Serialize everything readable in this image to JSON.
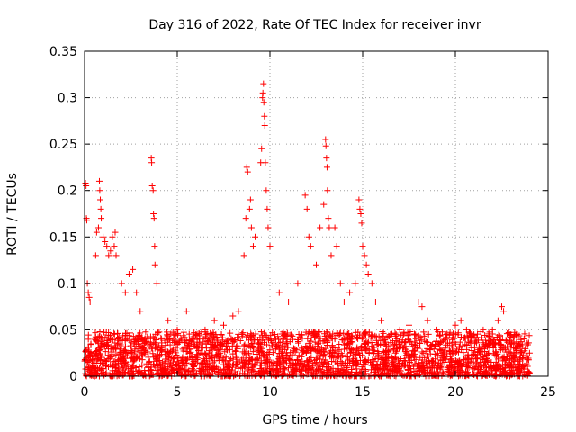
{
  "chart_data": {
    "type": "scatter",
    "title": "Day 316 of 2022, Rate Of TEC Index for receiver invr",
    "xlabel": "GPS time / hours",
    "ylabel": "ROTI / TECUs",
    "xlim": [
      0,
      25
    ],
    "ylim": [
      0,
      0.35
    ],
    "xticks": [
      0,
      5,
      10,
      15,
      20,
      25
    ],
    "xtick_labels": [
      "0",
      "5",
      "10",
      "15",
      "20",
      "25"
    ],
    "yticks": [
      0,
      0.05,
      0.1,
      0.15,
      0.2,
      0.25,
      0.3,
      0.35
    ],
    "ytick_labels": [
      "0",
      "0.05",
      "0.1",
      "0.15",
      "0.2",
      "0.25",
      "0.3",
      "0.35"
    ],
    "grid": true,
    "marker": "+",
    "series": [
      {
        "name": "ROTI",
        "color": "#ff0000",
        "points": [
          [
            0.05,
            0.208
          ],
          [
            0.08,
            0.205
          ],
          [
            0.1,
            0.17
          ],
          [
            0.12,
            0.168
          ],
          [
            0.15,
            0.1
          ],
          [
            0.2,
            0.09
          ],
          [
            0.25,
            0.085
          ],
          [
            0.3,
            0.08
          ],
          [
            0.6,
            0.13
          ],
          [
            0.65,
            0.155
          ],
          [
            0.75,
            0.16
          ],
          [
            0.8,
            0.21
          ],
          [
            0.82,
            0.2
          ],
          [
            0.85,
            0.19
          ],
          [
            0.88,
            0.18
          ],
          [
            0.9,
            0.17
          ],
          [
            1.0,
            0.15
          ],
          [
            1.1,
            0.145
          ],
          [
            1.2,
            0.14
          ],
          [
            1.3,
            0.13
          ],
          [
            1.4,
            0.135
          ],
          [
            1.5,
            0.15
          ],
          [
            1.6,
            0.14
          ],
          [
            1.65,
            0.155
          ],
          [
            1.7,
            0.13
          ],
          [
            2.0,
            0.1
          ],
          [
            2.2,
            0.09
          ],
          [
            2.4,
            0.11
          ],
          [
            2.6,
            0.115
          ],
          [
            2.8,
            0.09
          ],
          [
            3.0,
            0.07
          ],
          [
            3.6,
            0.235
          ],
          [
            3.62,
            0.23
          ],
          [
            3.65,
            0.205
          ],
          [
            3.7,
            0.2
          ],
          [
            3.72,
            0.175
          ],
          [
            3.75,
            0.17
          ],
          [
            3.78,
            0.14
          ],
          [
            3.8,
            0.12
          ],
          [
            3.9,
            0.1
          ],
          [
            4.5,
            0.06
          ],
          [
            5.0,
            0.05
          ],
          [
            5.5,
            0.07
          ],
          [
            6.0,
            0.045
          ],
          [
            6.5,
            0.05
          ],
          [
            7.0,
            0.06
          ],
          [
            7.5,
            0.055
          ],
          [
            8.0,
            0.065
          ],
          [
            8.3,
            0.07
          ],
          [
            8.6,
            0.13
          ],
          [
            8.7,
            0.17
          ],
          [
            8.75,
            0.225
          ],
          [
            8.8,
            0.22
          ],
          [
            8.9,
            0.18
          ],
          [
            8.95,
            0.19
          ],
          [
            9.0,
            0.16
          ],
          [
            9.1,
            0.14
          ],
          [
            9.2,
            0.15
          ],
          [
            9.5,
            0.23
          ],
          [
            9.55,
            0.245
          ],
          [
            9.6,
            0.3
          ],
          [
            9.62,
            0.305
          ],
          [
            9.65,
            0.315
          ],
          [
            9.67,
            0.295
          ],
          [
            9.7,
            0.28
          ],
          [
            9.72,
            0.27
          ],
          [
            9.75,
            0.23
          ],
          [
            9.8,
            0.2
          ],
          [
            9.85,
            0.18
          ],
          [
            9.9,
            0.16
          ],
          [
            10.0,
            0.14
          ],
          [
            10.5,
            0.09
          ],
          [
            11.0,
            0.08
          ],
          [
            11.5,
            0.1
          ],
          [
            11.9,
            0.195
          ],
          [
            12.0,
            0.18
          ],
          [
            12.1,
            0.15
          ],
          [
            12.2,
            0.14
          ],
          [
            12.5,
            0.12
          ],
          [
            12.7,
            0.16
          ],
          [
            12.9,
            0.185
          ],
          [
            13.0,
            0.255
          ],
          [
            13.02,
            0.248
          ],
          [
            13.05,
            0.235
          ],
          [
            13.08,
            0.225
          ],
          [
            13.1,
            0.2
          ],
          [
            13.15,
            0.17
          ],
          [
            13.2,
            0.16
          ],
          [
            13.3,
            0.13
          ],
          [
            13.5,
            0.16
          ],
          [
            13.6,
            0.14
          ],
          [
            13.8,
            0.1
          ],
          [
            14.0,
            0.08
          ],
          [
            14.3,
            0.09
          ],
          [
            14.6,
            0.1
          ],
          [
            14.8,
            0.19
          ],
          [
            14.85,
            0.18
          ],
          [
            14.9,
            0.175
          ],
          [
            14.95,
            0.165
          ],
          [
            15.0,
            0.14
          ],
          [
            15.1,
            0.13
          ],
          [
            15.2,
            0.12
          ],
          [
            15.3,
            0.11
          ],
          [
            15.5,
            0.1
          ],
          [
            15.7,
            0.08
          ],
          [
            16.0,
            0.06
          ],
          [
            16.5,
            0.045
          ],
          [
            17.0,
            0.05
          ],
          [
            17.5,
            0.055
          ],
          [
            18.0,
            0.08
          ],
          [
            18.2,
            0.075
          ],
          [
            18.5,
            0.06
          ],
          [
            19.0,
            0.05
          ],
          [
            19.5,
            0.045
          ],
          [
            20.0,
            0.055
          ],
          [
            20.3,
            0.06
          ],
          [
            20.6,
            0.05
          ],
          [
            21.0,
            0.045
          ],
          [
            21.5,
            0.05
          ],
          [
            22.0,
            0.05
          ],
          [
            22.3,
            0.06
          ],
          [
            22.5,
            0.075
          ],
          [
            22.6,
            0.07
          ],
          [
            23.0,
            0.045
          ],
          [
            23.5,
            0.03
          ],
          [
            24.0,
            0.025
          ]
        ],
        "baseline_band": {
          "x_range": [
            0,
            24
          ],
          "y_range": [
            0,
            0.03
          ],
          "note": "dense band of points near zero"
        }
      }
    ]
  }
}
